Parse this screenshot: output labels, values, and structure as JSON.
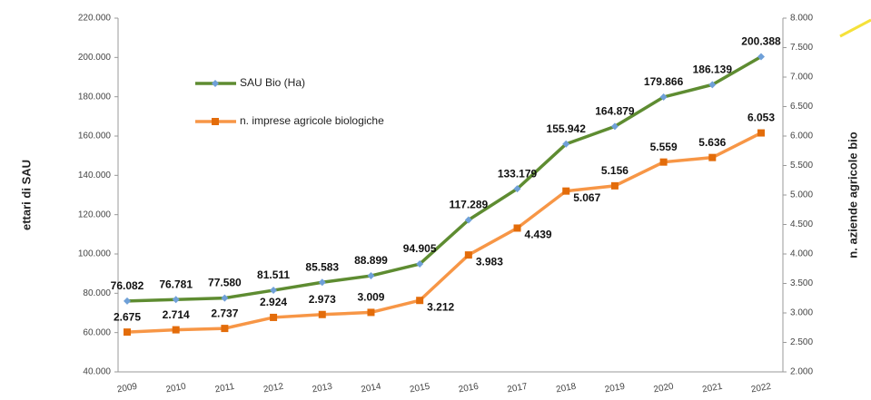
{
  "chart_data": {
    "type": "line",
    "categories": [
      "2009",
      "2010",
      "2011",
      "2012",
      "2013",
      "2014",
      "2015",
      "2016",
      "2017",
      "2018",
      "2019",
      "2020",
      "2021",
      "2022"
    ],
    "series": [
      {
        "name": "SAU Bio (Ha)",
        "color": "#5e8c31",
        "marker_color": "#6fa0d8",
        "values": [
          76082,
          76781,
          77580,
          81511,
          85583,
          88899,
          94905,
          117289,
          133179,
          155942,
          164879,
          179866,
          186139,
          200388
        ],
        "value_labels": [
          "76.082",
          "76.781",
          "77.580",
          "81.511",
          "85.583",
          "88.899",
          "94.905",
          "117.289",
          "133.179",
          "155.942",
          "164.879",
          "179.866",
          "186.139",
          "200.388"
        ]
      },
      {
        "name": "n. imprese agricole biologiche",
        "color": "#f79646",
        "marker_color": "#e36c0a",
        "axis": "y2",
        "values": [
          2675,
          2714,
          2737,
          2924,
          2973,
          3009,
          3212,
          3983,
          4439,
          5067,
          5156,
          5559,
          5636,
          6053
        ],
        "value_labels": [
          "2.675",
          "2.714",
          "2.737",
          "2.924",
          "2.973",
          "3.009",
          "3.212",
          "3.983",
          "4.439",
          "5.067",
          "5.156",
          "5.559",
          "5.636",
          "6.053"
        ]
      }
    ],
    "ylabel": "ettari di SAU",
    "y2label": "n. aziende agricole bio",
    "ylim": [
      40000,
      220000
    ],
    "yticks": [
      {
        "value": 40000,
        "label": "40.000"
      },
      {
        "value": 60000,
        "label": "60.000"
      },
      {
        "value": 80000,
        "label": "80.000"
      },
      {
        "value": 100000,
        "label": "100.000"
      },
      {
        "value": 120000,
        "label": "120.000"
      },
      {
        "value": 140000,
        "label": "140.000"
      },
      {
        "value": 160000,
        "label": "160.000"
      },
      {
        "value": 180000,
        "label": "180.000"
      },
      {
        "value": 200000,
        "label": "200.000"
      },
      {
        "value": 220000,
        "label": "220.000"
      }
    ],
    "y2lim": [
      2000,
      8000
    ],
    "y2ticks": [
      {
        "value": 2000,
        "label": "2.000"
      },
      {
        "value": 2500,
        "label": "2.500"
      },
      {
        "value": 3000,
        "label": "3.000"
      },
      {
        "value": 3500,
        "label": "3.500"
      },
      {
        "value": 4000,
        "label": "4.000"
      },
      {
        "value": 4500,
        "label": "4.500"
      },
      {
        "value": 5000,
        "label": "5.000"
      },
      {
        "value": 5500,
        "label": "5.500"
      },
      {
        "value": 6000,
        "label": "6.000"
      },
      {
        "value": 6500,
        "label": "6.500"
      },
      {
        "value": 7000,
        "label": "7.000"
      },
      {
        "value": 7500,
        "label": "7.500"
      },
      {
        "value": 8000,
        "label": "8.000"
      }
    ],
    "grid": false
  }
}
